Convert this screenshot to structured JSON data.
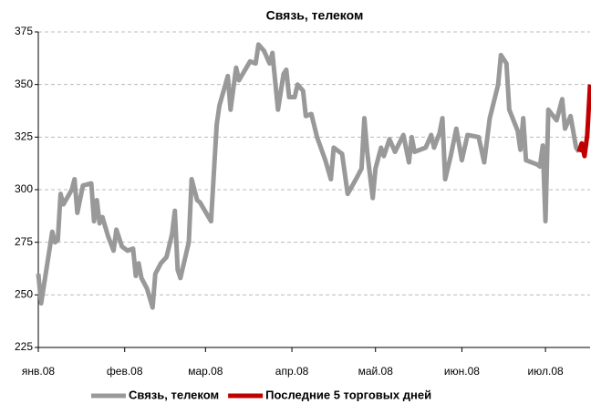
{
  "chart_data": {
    "type": "line",
    "title": "Связь, телеком",
    "xlim": [
      0,
      198
    ],
    "xticks": [
      {
        "value": 0,
        "label": "янв.08"
      },
      {
        "value": 31,
        "label": "фев.08"
      },
      {
        "value": 60,
        "label": "мар.08"
      },
      {
        "value": 91,
        "label": "апр.08"
      },
      {
        "value": 121,
        "label": "май.08"
      },
      {
        "value": 152,
        "label": "июн.08"
      },
      {
        "value": 182,
        "label": "июл.08"
      }
    ],
    "ylim": [
      225,
      375
    ],
    "yticks": [
      225,
      250,
      275,
      300,
      325,
      350,
      375
    ],
    "grid": true,
    "legend": "bottom",
    "series": [
      {
        "name": "Связь, телеком",
        "color": "#999999",
        "x": [
          0,
          1,
          5,
          6,
          7,
          8,
          9,
          12,
          13,
          14,
          16,
          19,
          20,
          21,
          22,
          23,
          25,
          27,
          28,
          30,
          32,
          34,
          35,
          36,
          37,
          39,
          41,
          42,
          44,
          46,
          48,
          49,
          50,
          51,
          54,
          55,
          57,
          58,
          62,
          64,
          65,
          68,
          69,
          71,
          72,
          76,
          78,
          79,
          81,
          83,
          84,
          86,
          88,
          89,
          90,
          92,
          93,
          95,
          96,
          98,
          100,
          103,
          105,
          106,
          109,
          111,
          114,
          116,
          117,
          118,
          120,
          121,
          123,
          124,
          126,
          128,
          131,
          133,
          134,
          135,
          139,
          141,
          142,
          144,
          145,
          146,
          148,
          150,
          152,
          154,
          158,
          160,
          162,
          165,
          166,
          168,
          169,
          172,
          173,
          174,
          175,
          179,
          180,
          181,
          182,
          183,
          186,
          188,
          189,
          191,
          193,
          194
        ],
        "values": [
          260,
          246,
          280,
          275,
          276,
          298,
          293,
          300,
          305,
          289,
          302,
          303,
          285,
          295,
          284,
          287,
          278,
          271,
          281,
          273,
          271,
          272,
          259,
          265,
          258,
          253,
          244,
          260,
          265,
          268,
          279,
          290,
          262,
          258,
          275,
          305,
          295,
          294,
          285,
          331,
          340,
          354,
          338,
          358,
          352,
          361,
          360,
          369,
          366,
          360,
          365,
          338,
          355,
          357,
          344,
          344,
          350,
          347,
          335,
          336,
          325,
          314,
          305,
          320,
          317,
          298,
          305,
          310,
          334,
          318,
          296,
          310,
          320,
          316,
          324,
          318,
          326,
          313,
          325,
          318,
          320,
          326,
          320,
          327,
          334,
          305,
          316,
          329,
          314,
          326,
          325,
          313,
          334,
          350,
          364,
          360,
          338,
          328,
          319,
          334,
          314,
          312,
          311,
          321,
          285,
          338,
          333,
          343,
          329,
          335,
          320,
          318
        ]
      },
      {
        "name": "Последние 5 торговых дней",
        "color": "#c00000",
        "x": [
          194,
          195,
          196,
          197,
          198
        ],
        "values": [
          318,
          322,
          316,
          326,
          350
        ]
      }
    ]
  }
}
